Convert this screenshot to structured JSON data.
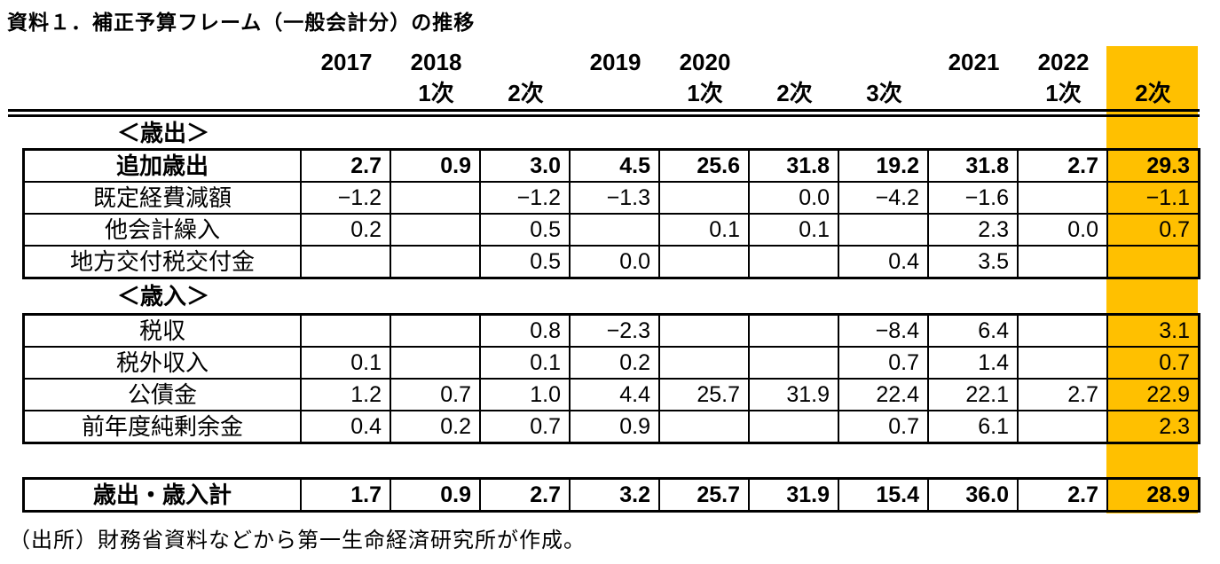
{
  "title": "資料１．補正予算フレーム（一般会計分）の推移",
  "colors": {
    "highlight": "#FFC000",
    "border": "#000000",
    "text": "#000000"
  },
  "header": {
    "years": [
      "2017",
      "2018",
      "",
      "2019",
      "2020",
      "",
      "",
      "2021",
      "2022",
      ""
    ],
    "rounds": [
      "",
      "1次",
      "2次",
      "",
      "1次",
      "2次",
      "3次",
      "",
      "1次",
      "2次"
    ]
  },
  "table": {
    "highlight_column_index": 9,
    "sections": [
      {
        "label": "＜歳出＞",
        "rows": [
          {
            "label": "追加歳出",
            "values": [
              "2.7",
              "0.9",
              "3.0",
              "4.5",
              "25.6",
              "31.8",
              "19.2",
              "31.8",
              "2.7",
              "29.3"
            ]
          },
          {
            "label": "既定経費減額",
            "values": [
              "−1.2",
              "",
              "−1.2",
              "−1.3",
              "",
              "0.0",
              "−4.2",
              "−1.6",
              "",
              "−1.1"
            ]
          },
          {
            "label": "他会計繰入",
            "values": [
              "0.2",
              "",
              "0.5",
              "",
              "0.1",
              "0.1",
              "",
              "2.3",
              "0.0",
              "0.7"
            ]
          },
          {
            "label": "地方交付税交付金",
            "values": [
              "",
              "",
              "0.5",
              "0.0",
              "",
              "",
              "0.4",
              "3.5",
              "",
              ""
            ]
          }
        ]
      },
      {
        "label": "＜歳入＞",
        "rows": [
          {
            "label": "税収",
            "values": [
              "",
              "",
              "0.8",
              "−2.3",
              "",
              "",
              "−8.4",
              "6.4",
              "",
              "3.1"
            ]
          },
          {
            "label": "税外収入",
            "values": [
              "0.1",
              "",
              "0.1",
              "0.2",
              "",
              "",
              "0.7",
              "1.4",
              "",
              "0.7"
            ]
          },
          {
            "label": "公債金",
            "values": [
              "1.2",
              "0.7",
              "1.0",
              "4.4",
              "25.7",
              "31.9",
              "22.4",
              "22.1",
              "2.7",
              "22.9"
            ]
          },
          {
            "label": "前年度純剰余金",
            "values": [
              "0.4",
              "0.2",
              "0.7",
              "0.9",
              "",
              "",
              "0.7",
              "6.1",
              "",
              "2.3"
            ]
          }
        ]
      }
    ],
    "total": {
      "label": "歳出・歳入計",
      "values": [
        "1.7",
        "0.9",
        "2.7",
        "3.2",
        "25.7",
        "31.9",
        "15.4",
        "36.0",
        "2.7",
        "28.9"
      ]
    }
  },
  "source_note": "（出所）財務省資料などから第一生命経済研究所が作成。"
}
